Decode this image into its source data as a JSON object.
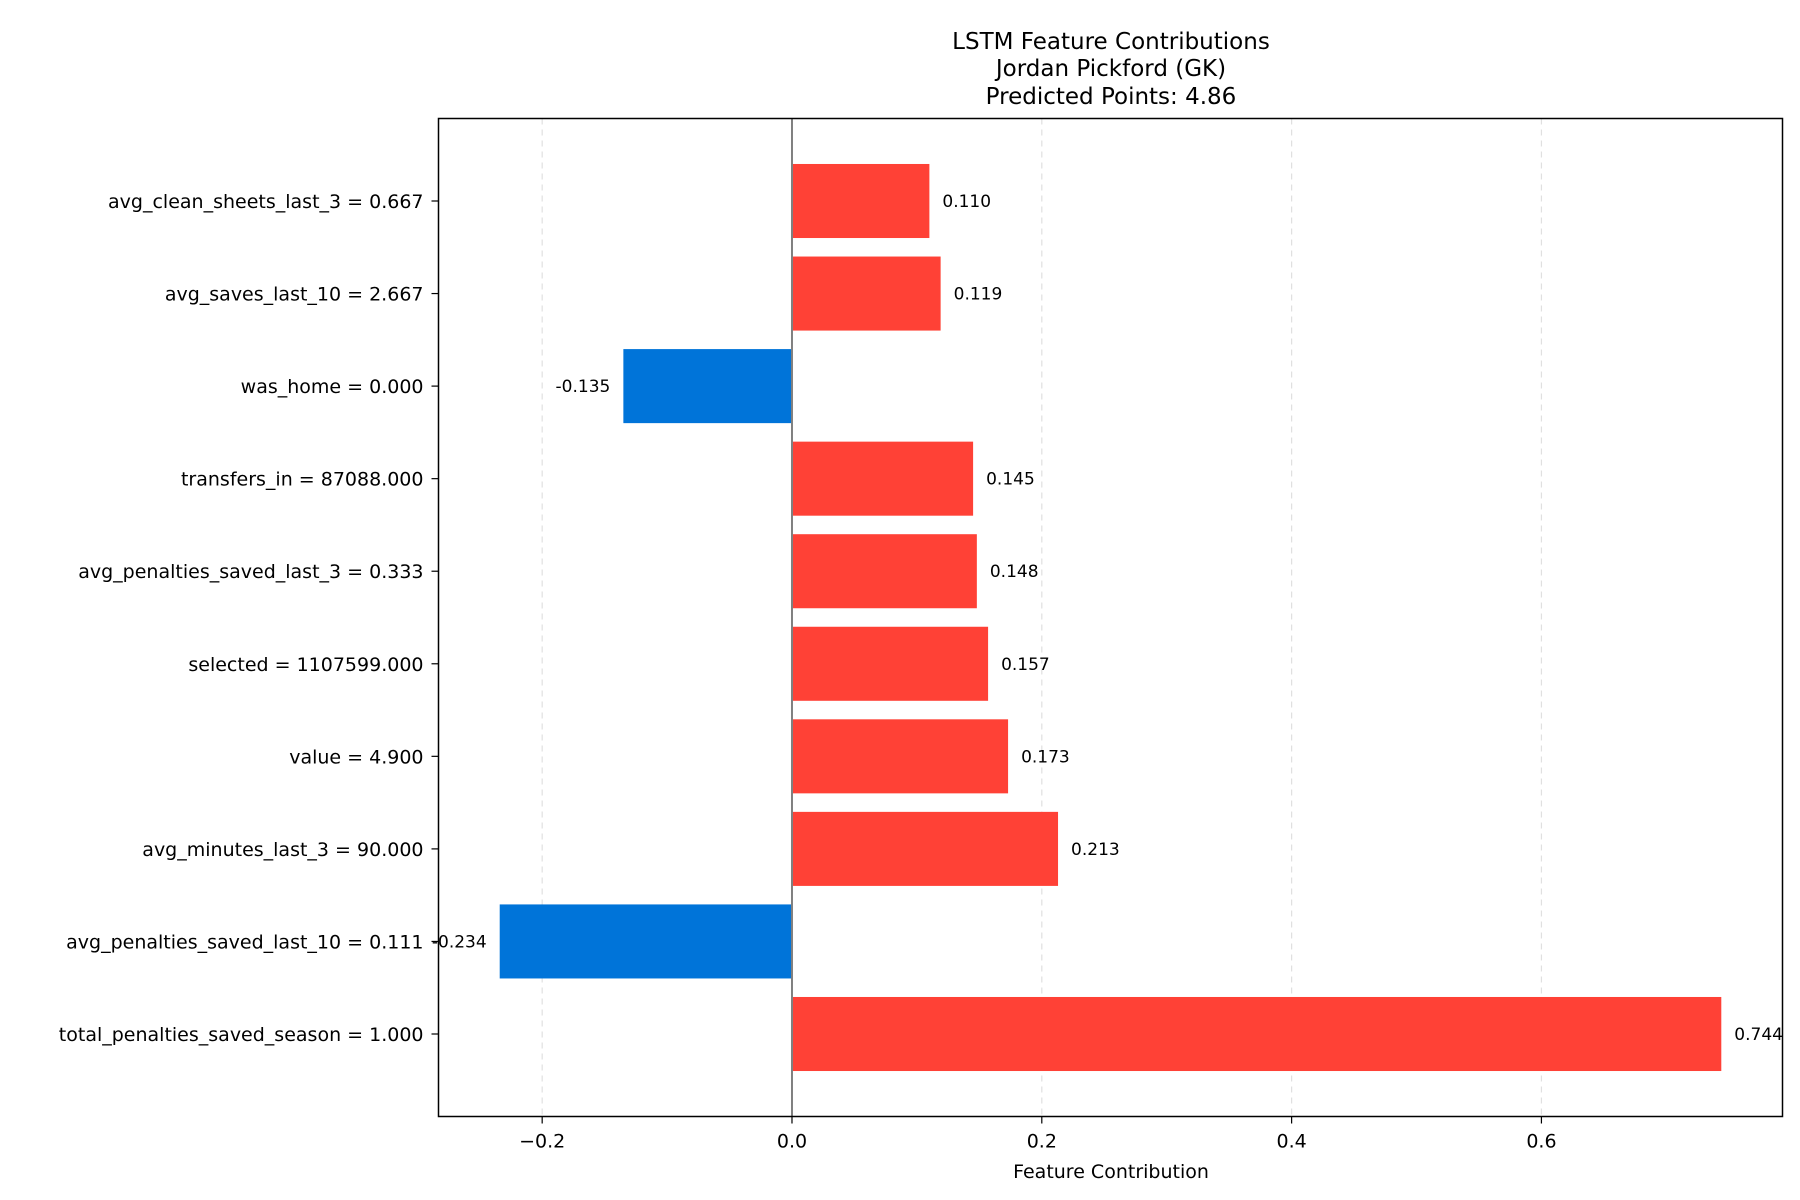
{
  "chart_data": {
    "type": "bar",
    "orientation": "horizontal",
    "title": "LSTM Feature Contributions",
    "subtitle": "Jordan Pickford (GK)",
    "subtitle2": "Predicted Points: 4.86",
    "xlabel": "Feature Contribution",
    "ylabel": "",
    "xlim": [
      -0.283,
      0.793
    ],
    "xticks": [
      -0.2,
      0.0,
      0.2,
      0.4,
      0.6
    ],
    "xtick_labels": [
      "−0.2",
      "0.0",
      "0.2",
      "0.4",
      "0.6"
    ],
    "grid": "x-dashed",
    "legend": "none",
    "colors": {
      "positive": "#ff4136",
      "negative": "#0074d9",
      "zero_line": "#808080"
    },
    "categories": [
      "avg_clean_sheets_last_3 = 0.667",
      "avg_saves_last_10 = 2.667",
      "was_home = 0.000",
      "transfers_in = 87088.000",
      "avg_penalties_saved_last_3 = 0.333",
      "selected = 1107599.000",
      "value = 4.900",
      "avg_minutes_last_3 = 90.000",
      "avg_penalties_saved_last_10 = 0.111",
      "total_penalties_saved_season = 1.000"
    ],
    "values": [
      0.11,
      0.119,
      -0.135,
      0.145,
      0.148,
      0.157,
      0.173,
      0.213,
      -0.234,
      0.744
    ],
    "value_labels": [
      "0.110",
      "0.119",
      "-0.135",
      "0.145",
      "0.148",
      "0.157",
      "0.173",
      "0.213",
      "-0.234",
      "0.744"
    ]
  }
}
